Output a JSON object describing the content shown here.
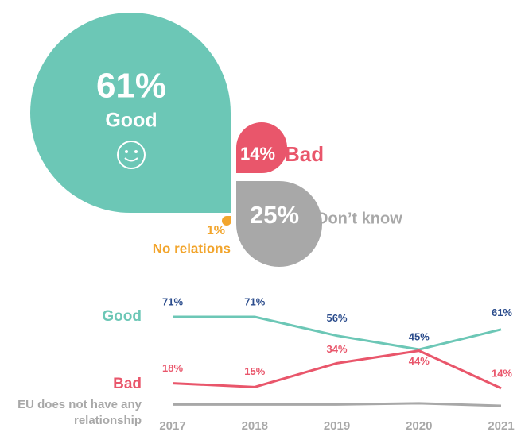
{
  "chart_data": [
    {
      "type": "petal",
      "categories": [
        "Good",
        "Bad",
        "Don’t know",
        "No relations"
      ],
      "values": [
        61,
        14,
        25,
        1
      ],
      "value_labels": [
        "61%",
        "14%",
        "25%",
        "1%"
      ],
      "colors": [
        "#6cc7b6",
        "#e9566b",
        "#a8a8a8",
        "#f2a52d"
      ]
    },
    {
      "type": "line",
      "x": [
        2017,
        2018,
        2019,
        2020,
        2021
      ],
      "series": [
        {
          "name": "Good",
          "color": "#6cc7b6",
          "label_color": "#2b4c8c",
          "values": [
            71,
            71,
            56,
            45,
            61
          ],
          "value_labels": [
            "71%",
            "71%",
            "56%",
            "45%",
            "61%"
          ]
        },
        {
          "name": "Bad",
          "color": "#e9566b",
          "label_color": "#e9566b",
          "values": [
            18,
            15,
            34,
            44,
            14
          ],
          "value_labels": [
            "18%",
            "15%",
            "34%",
            "44%",
            "14%"
          ]
        },
        {
          "name": "EU does not have any relationship",
          "color": "#a8a8a8",
          "values": [
            1,
            1,
            1,
            2,
            0
          ]
        }
      ]
    }
  ]
}
